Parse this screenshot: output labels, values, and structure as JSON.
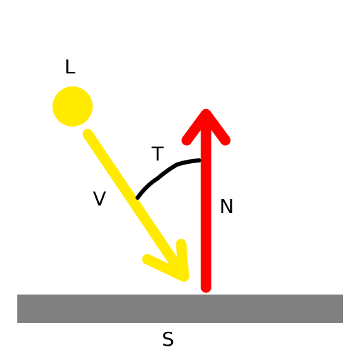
{
  "labels": {
    "light": "L",
    "incident_vector": "V",
    "angle": "T",
    "normal": "N",
    "surface": "S"
  },
  "colors": {
    "background": "#ffffff",
    "light_source": "#ffea00",
    "incident_vector": "#ffea00",
    "normal_vector": "#ff0000",
    "angle_arc": "#000000",
    "surface": "#808080",
    "label_text": "#000000"
  }
}
